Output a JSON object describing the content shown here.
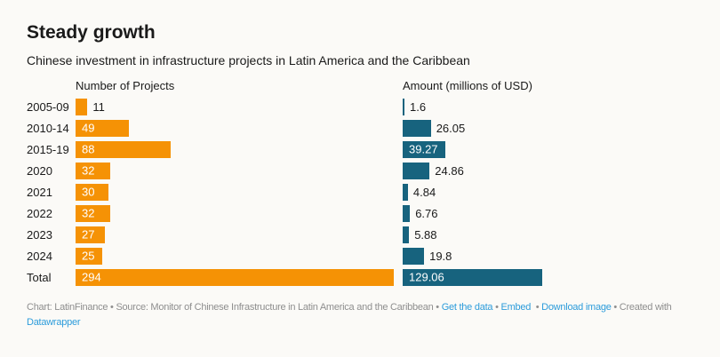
{
  "page": {
    "background": "#fbfaf7"
  },
  "chart": {
    "title": "Steady growth",
    "subtitle": "Chinese investment in infrastructure projects in Latin America and the Caribbean",
    "columns": [
      {
        "header": "Number of Projects",
        "color": "#f59205"
      },
      {
        "header": "Amount (millions of USD)",
        "color": "#17637e"
      }
    ]
  },
  "chart_data": {
    "type": "bar",
    "orientation": "horizontal",
    "layout": "two-column split bars, value labels shown, no axis lines or gridlines",
    "categories": [
      "2005-09",
      "2010-14",
      "2015-19",
      "2020",
      "2021",
      "2022",
      "2023",
      "2024",
      "Total"
    ],
    "series": [
      {
        "name": "Number of Projects",
        "color": "#f59205",
        "values": [
          11,
          49,
          88,
          32,
          30,
          32,
          27,
          25,
          294
        ],
        "labels": [
          "11",
          "49",
          "88",
          "32",
          "30",
          "32",
          "27",
          "25",
          "294"
        ]
      },
      {
        "name": "Amount (millions of USD)",
        "color": "#17637e",
        "values": [
          1.6,
          26.05,
          39.27,
          24.86,
          4.84,
          6.76,
          5.88,
          19.8,
          129.06
        ],
        "labels": [
          "1.6",
          "26.05",
          "39.27",
          "24.86",
          "4.84",
          "6.76",
          "5.88",
          "19.8",
          "129.06"
        ]
      }
    ],
    "shared_scale_max": 294,
    "title": "Steady growth",
    "subtitle": "Chinese investment in infrastructure projects in Latin America and the Caribbean"
  },
  "footer": {
    "text_color": "#8e8e8e",
    "link_color": "#2d9cdb",
    "lines": [
      [
        {
          "text": "Chart: LatinFinance • Source: Monitor of Chinese Infrastructure in Latin America and the Caribbean • ",
          "link": false
        },
        {
          "text": "Get the data",
          "link": true,
          "name": "get-the-data-link"
        },
        {
          "text": " • ",
          "link": false
        },
        {
          "text": "Embed",
          "link": true,
          "name": "embed-link"
        },
        {
          "text": "  • ",
          "link": false
        },
        {
          "text": "Download image",
          "link": true,
          "name": "download-image-link"
        },
        {
          "text": " • Created with ",
          "link": false
        }
      ],
      [
        {
          "text": "Datawrapper",
          "link": true,
          "name": "datawrapper-link"
        }
      ]
    ]
  }
}
